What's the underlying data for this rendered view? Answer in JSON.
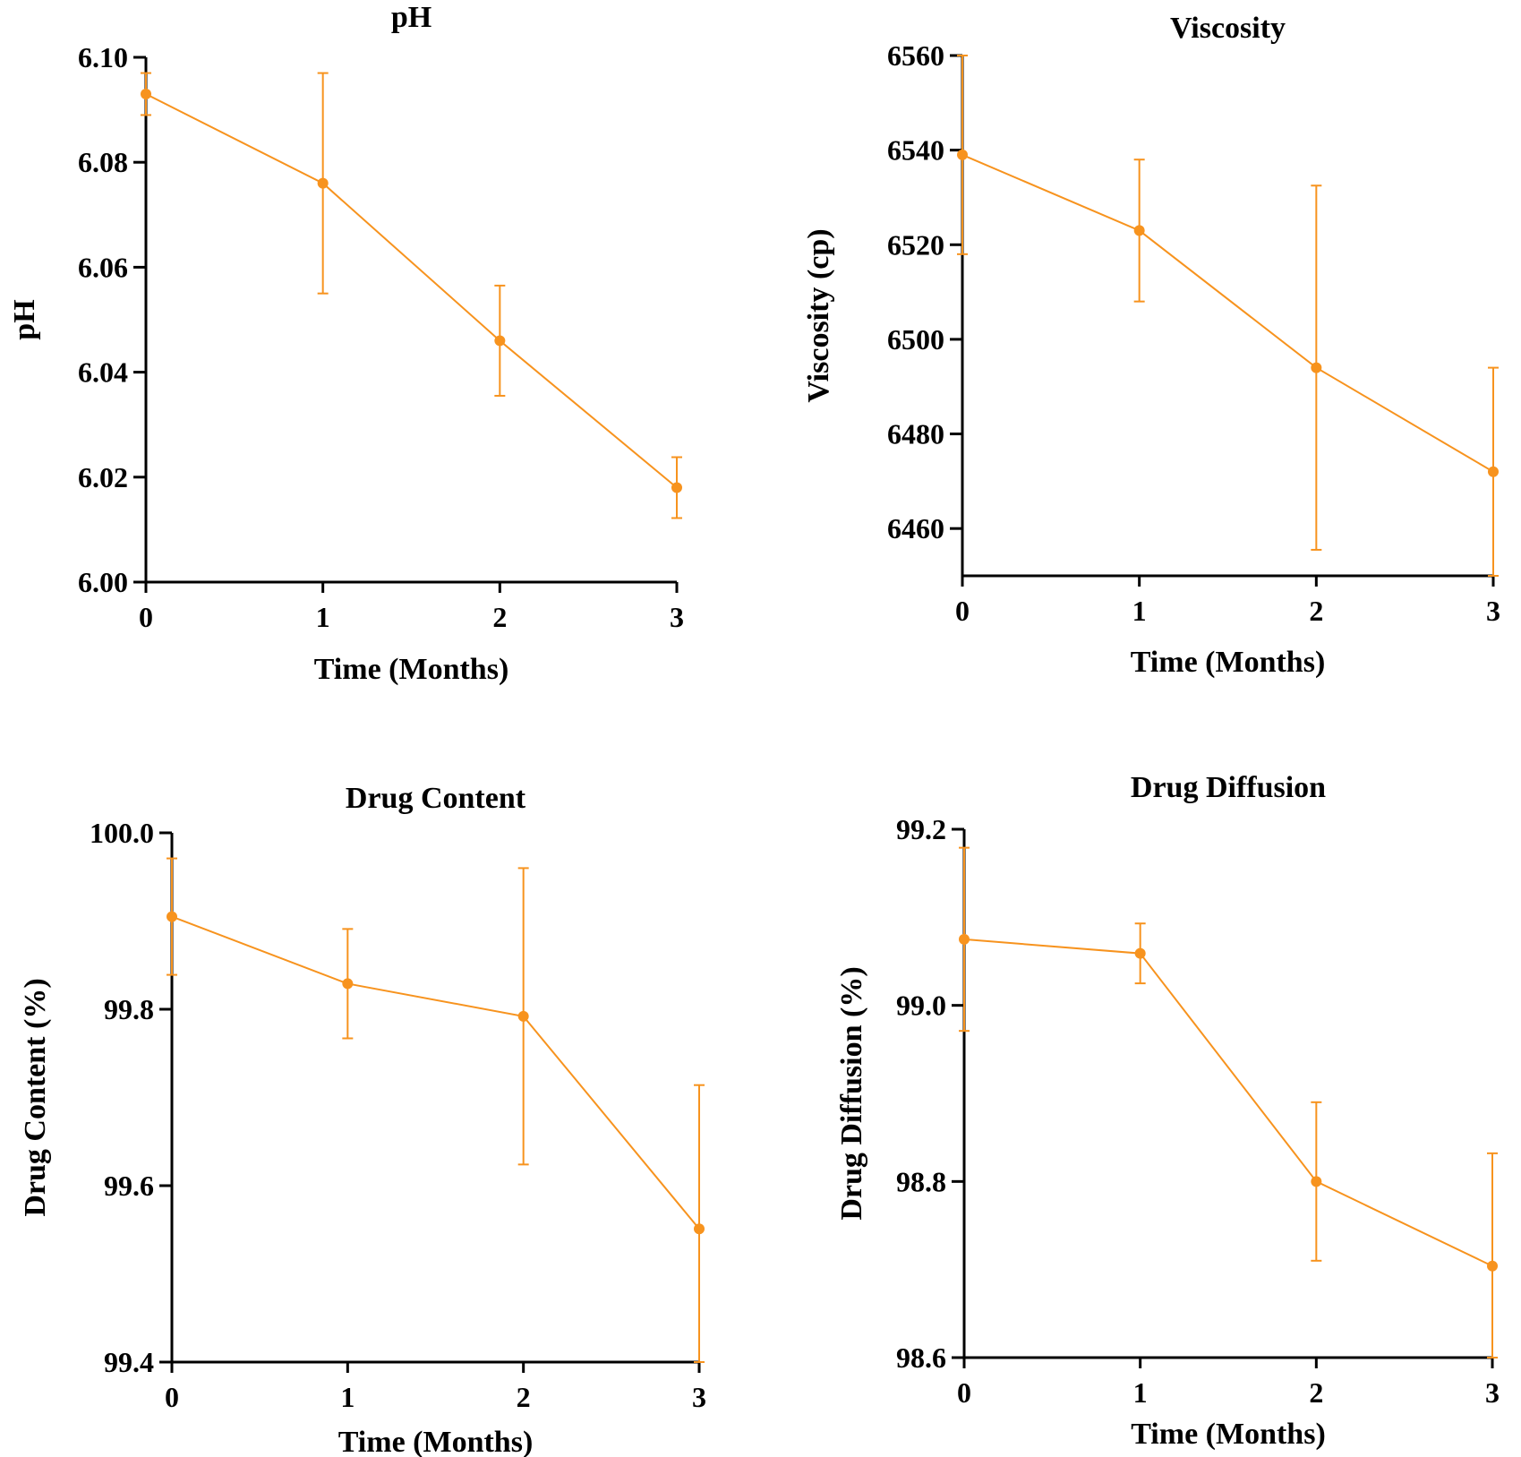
{
  "colors": {
    "series": "#f7931e",
    "axis": "#000000"
  },
  "chart_data": [
    {
      "type": "line",
      "title": "pH",
      "xlabel": "Time (Months)",
      "ylabel": "pH",
      "x": [
        0,
        1,
        2,
        3
      ],
      "y": [
        6.093,
        6.076,
        6.046,
        6.018
      ],
      "error": [
        0.004,
        0.021,
        0.0105,
        0.0058
      ],
      "xlim": [
        0,
        3
      ],
      "ylim": [
        6.0,
        6.1
      ],
      "xticks": [
        "0",
        "1",
        "2",
        "3"
      ],
      "yticks": [
        "6.00",
        "6.02",
        "6.04",
        "6.06",
        "6.08",
        "6.10"
      ],
      "grid": false
    },
    {
      "type": "line",
      "title": "Viscosity",
      "xlabel": "Time (Months)",
      "ylabel": "Viscosity (cp)",
      "x": [
        0,
        1,
        2,
        3
      ],
      "y": [
        6539,
        6523,
        6494,
        6472
      ],
      "error": [
        21,
        15,
        38.5,
        22
      ],
      "xlim": [
        0,
        3
      ],
      "ylim": [
        6450,
        6560
      ],
      "xticks": [
        "0",
        "1",
        "2",
        "3"
      ],
      "yticks": [
        "6460",
        "6480",
        "6500",
        "6520",
        "6540",
        "6560"
      ],
      "grid": false
    },
    {
      "type": "line",
      "title": "Drug Content",
      "xlabel": "Time (Months)",
      "ylabel": "Drug Content (%)",
      "x": [
        0,
        1,
        2,
        3
      ],
      "y": [
        99.905,
        99.829,
        99.792,
        99.551
      ],
      "error": [
        0.066,
        0.062,
        0.168,
        0.163
      ],
      "xlim": [
        0,
        3
      ],
      "ylim": [
        99.4,
        100.0
      ],
      "xticks": [
        "0",
        "1",
        "2",
        "3"
      ],
      "yticks": [
        "99.4",
        "99.6",
        "99.8",
        "100.0"
      ],
      "grid": false
    },
    {
      "type": "line",
      "title": "Drug Diffusion",
      "xlabel": "Time (Months)",
      "ylabel": "Drug Diffusion (%)",
      "x": [
        0,
        1,
        2,
        3
      ],
      "y": [
        99.075,
        99.059,
        98.8,
        98.704
      ],
      "error": [
        0.104,
        0.034,
        0.09,
        0.128
      ],
      "xlim": [
        0,
        3
      ],
      "ylim": [
        98.6,
        99.2
      ],
      "xticks": [
        "0",
        "1",
        "2",
        "3"
      ],
      "yticks": [
        "98.6",
        "98.8",
        "99.0",
        "99.2"
      ],
      "grid": false
    }
  ]
}
